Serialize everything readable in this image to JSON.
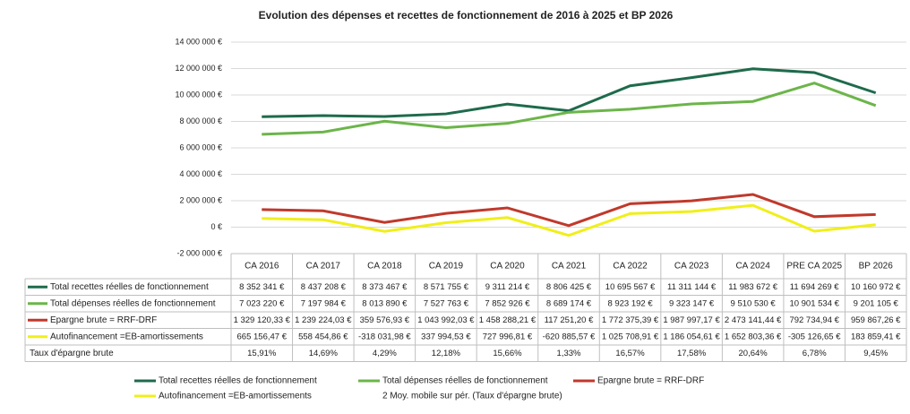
{
  "chart_data": {
    "type": "line",
    "title": "Evolution des dépenses et recettes de fonctionnement de 2016 à 2025 et BP 2026",
    "categories": [
      "CA 2016",
      "CA 2017",
      "CA 2018",
      "CA 2019",
      "CA 2020",
      "CA 2021",
      "CA 2022",
      "CA 2023",
      "CA 2024",
      "PRE CA 2025",
      "BP 2026"
    ],
    "ylim": [
      -2000000,
      14000000
    ],
    "yticks": [
      {
        "value": -2000000,
        "label": "-2 000 000 €"
      },
      {
        "value": 0,
        "label": "0 €"
      },
      {
        "value": 2000000,
        "label": "2 000 000 €"
      },
      {
        "value": 4000000,
        "label": "4 000 000 €"
      },
      {
        "value": 6000000,
        "label": "6 000 000 €"
      },
      {
        "value": 8000000,
        "label": "8 000 000 €"
      },
      {
        "value": 10000000,
        "label": "10 000 000 €"
      },
      {
        "value": 12000000,
        "label": "12 000 000 €"
      },
      {
        "value": 14000000,
        "label": "14 000 000 €"
      }
    ],
    "grid": true,
    "series": [
      {
        "name": "Total recettes réelles de fonctionnement",
        "color": "#1e6b4c",
        "values": [
          8352341,
          8437208,
          8373467,
          8571755,
          9311214,
          8806425,
          10695567,
          11311144,
          11983672,
          11694269,
          10160972
        ],
        "value_labels": [
          "8 352 341 €",
          "8 437 208 €",
          "8 373 467 €",
          "8 571 755 €",
          "9 311 214 €",
          "8 806 425 €",
          "10 695 567 €",
          "11 311 144 €",
          "11 983 672 €",
          "11 694 269 €",
          "10 160 972 €"
        ]
      },
      {
        "name": "Total dépenses réelles de fonctionnement",
        "color": "#6cb54a",
        "values": [
          7023220,
          7197984,
          8013890,
          7527763,
          7852926,
          8689174,
          8923192,
          9323147,
          9510530,
          10901534,
          9201105
        ],
        "value_labels": [
          "7 023 220 €",
          "7 197 984 €",
          "8 013 890 €",
          "7 527 763 €",
          "7 852 926 €",
          "8 689 174 €",
          "8 923 192 €",
          "9 323 147 €",
          "9 510 530 €",
          "10 901 534 €",
          "9 201 105 €"
        ]
      },
      {
        "name": "Epargne brute = RRF-DRF",
        "color": "#c0392b",
        "values": [
          1329120.33,
          1239224.03,
          359576.93,
          1043992.03,
          1458288.21,
          117251.2,
          1772375.39,
          1987997.17,
          2473141.44,
          792734.94,
          959867.26
        ],
        "value_labels": [
          "1 329 120,33 €",
          "1 239 224,03 €",
          "359 576,93 €",
          "1 043 992,03 €",
          "1 458 288,21 €",
          "117 251,20 €",
          "1 772 375,39 €",
          "1 987 997,17 €",
          "2 473 141,44 €",
          "792 734,94 €",
          "959 867,26 €"
        ]
      },
      {
        "name": "Autofinancement =EB-amortissements",
        "color": "#f0ef1a",
        "values": [
          665156.47,
          558454.86,
          -318031.98,
          337994.53,
          727996.81,
          -620885.57,
          1025708.91,
          1186054.61,
          1652803.36,
          -305126.65,
          183859.41
        ],
        "value_labels": [
          "665 156,47 €",
          "558 454,86 €",
          "-318 031,98 €",
          "337 994,53 €",
          "727 996,81 €",
          "-620 885,57 €",
          "1 025 708,91 €",
          "1 186 054,61 €",
          "1 652 803,36 €",
          "-305 126,65 €",
          "183 859,41 €"
        ]
      }
    ],
    "rate": {
      "name": "Taux d'épargne brute",
      "values": [
        15.91,
        14.69,
        4.29,
        12.18,
        15.66,
        1.33,
        16.57,
        17.58,
        20.64,
        6.78,
        9.45
      ],
      "value_labels": [
        "15,91%",
        "14,69%",
        "4,29%",
        "12,18%",
        "15,66%",
        "1,33%",
        "16,57%",
        "17,58%",
        "20,64%",
        "6,78%",
        "9,45%"
      ]
    },
    "trendline_legend": "2 Moy. mobile sur pér. (Taux d'épargne brute)"
  }
}
